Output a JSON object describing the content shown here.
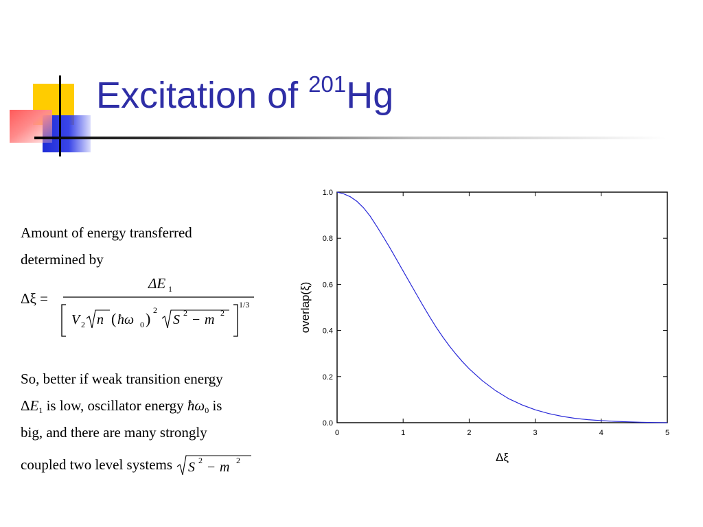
{
  "slide": {
    "title_main": "Excitation of ",
    "title_sup": "201",
    "title_end": "Hg"
  },
  "text": {
    "line1": "Amount of energy transferred",
    "line2": "determined by",
    "line3": "So, better if weak transition energy",
    "line4_mid": "is low, oscillator energy",
    "line4_end": "is",
    "line5": "big, and there are many strongly",
    "line6": "coupled two level systems"
  },
  "formula": {
    "lhs": "Δξ =",
    "numerator": "ΔE",
    "numerator_sub": "1",
    "exponent": "1/3"
  },
  "chart_data": {
    "type": "line",
    "xlabel": "Δξ",
    "ylabel": "overlap(ξ)",
    "xlim": [
      0,
      5
    ],
    "ylim": [
      0,
      1
    ],
    "xticks": [
      "0",
      "1",
      "2",
      "3",
      "4",
      "5"
    ],
    "yticks": [
      "0.0",
      "0.2",
      "0.4",
      "0.6",
      "0.8",
      "1.0"
    ],
    "grid": false,
    "series": [
      {
        "color": "#2a2ad8",
        "x": [
          0,
          0.1,
          0.2,
          0.3,
          0.4,
          0.5,
          0.6,
          0.7,
          0.8,
          0.9,
          1.0,
          1.1,
          1.2,
          1.3,
          1.4,
          1.5,
          1.6,
          1.7,
          1.8,
          1.9,
          2.0,
          2.2,
          2.4,
          2.6,
          2.8,
          3.0,
          3.2,
          3.4,
          3.6,
          3.8,
          4.0,
          4.2,
          4.4,
          4.6,
          4.8,
          5.0
        ],
        "y": [
          1.0,
          0.993,
          0.98,
          0.96,
          0.932,
          0.896,
          0.852,
          0.806,
          0.758,
          0.708,
          0.658,
          0.608,
          0.558,
          0.508,
          0.46,
          0.414,
          0.372,
          0.333,
          0.297,
          0.264,
          0.234,
          0.182,
          0.139,
          0.104,
          0.077,
          0.056,
          0.04,
          0.028,
          0.019,
          0.013,
          0.009,
          0.006,
          0.004,
          0.002,
          0.001,
          0.0
        ]
      }
    ]
  }
}
